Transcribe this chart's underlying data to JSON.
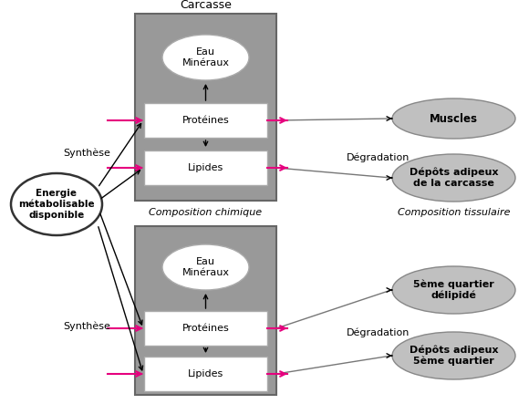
{
  "bg_color": "#ffffff",
  "gray_box_color": "#999999",
  "white_box_color": "#ffffff",
  "ellipse_out_color": "#c0c0c0",
  "energy_ellipse_color": "#ffffff",
  "arrow_color": "#000000",
  "pink_color": "#e6007e",
  "text_color": "#000000",
  "title_top": "Carcasse",
  "label_chem1": "Composition chimique",
  "label_tissue": "Composition tissulaire",
  "label_synth1": "Synthèse",
  "label_synth2": "Synthèse",
  "label_degrad1": "Dégradation",
  "label_degrad2": "Dégradation",
  "energy_label": "Energie\nmétabolisable\ndisponible",
  "eau_label1": "Eau\nMinéraux",
  "proteines_label1": "Protéines",
  "lipides_label1": "Lipides",
  "eau_label2": "Eau\nMinéraux",
  "proteines_label2": "Protéines",
  "lipides_label2": "Lipides",
  "muscles_label": "Muscles",
  "depots_label": "Dépôts adipeux\nde la carcasse",
  "cinquieme_label": "5ème quartier\ndélipidé",
  "depots5_label": "Dépôts adipeux\n5ème quartier",
  "fig_w": 5.8,
  "fig_h": 4.43,
  "dpi": 100
}
